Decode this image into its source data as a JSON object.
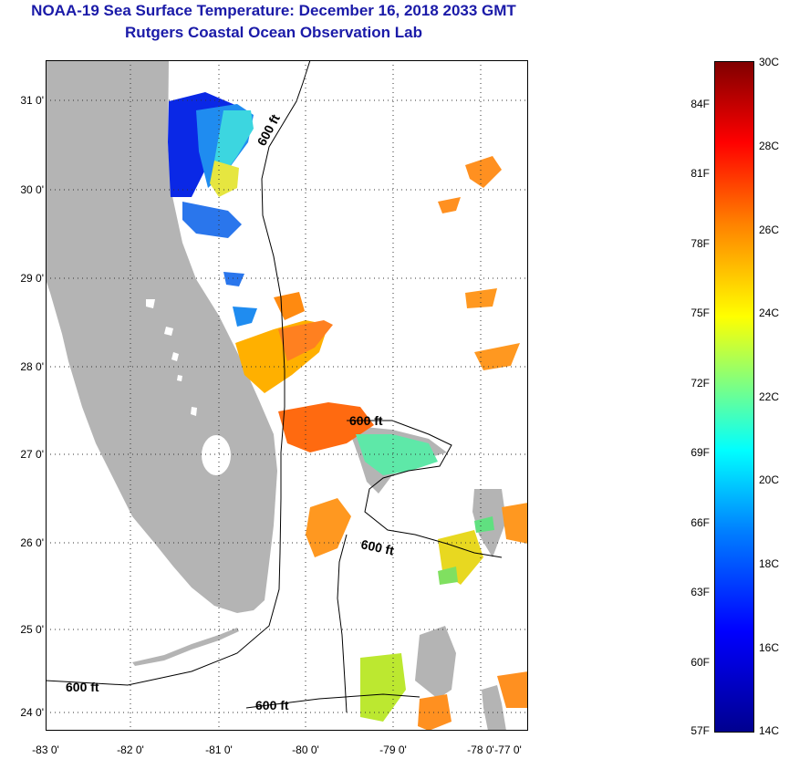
{
  "header": {
    "title": "NOAA-19 Sea Surface Temperature:  December 16, 2018 2033 GMT",
    "subtitle": "Rutgers Coastal Ocean Observation Lab"
  },
  "axes": {
    "latitudes": [
      "31 0'",
      "30 0'",
      "29 0'",
      "28 0'",
      "27 0'",
      "26 0'",
      "25 0'",
      "24 0'"
    ],
    "longitudes": [
      "-83 0'",
      "-82 0'",
      "-81 0'",
      "-80 0'",
      "-79 0'",
      "-78 0'",
      "-77 0'"
    ]
  },
  "contours": {
    "label": "600 ft"
  },
  "colorbar": {
    "celsius": [
      "30C",
      "28C",
      "26C",
      "24C",
      "22C",
      "20C",
      "18C",
      "16C",
      "14C"
    ],
    "fahrenheit": [
      "84F",
      "81F",
      "78F",
      "75F",
      "72F",
      "69F",
      "66F",
      "63F",
      "60F",
      "57F"
    ]
  },
  "colors": {
    "land": "#b4b4b4",
    "title": "#1a1aa8"
  }
}
